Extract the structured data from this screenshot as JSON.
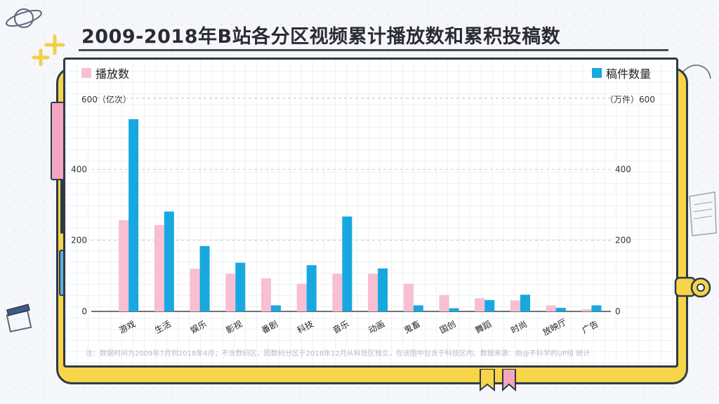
{
  "title": "2009-2018年B站各分区视频累计播放数和累积投稿数",
  "legend": {
    "left_label": "播放数",
    "right_label": "稿件数量"
  },
  "axes": {
    "left_unit": "600（亿次）",
    "right_unit": "（万件）600"
  },
  "note": "注：数据时间为2009年7月到2018年4月；不含数码区，因数码分区于2018年12月从科技区独立，在该图中包含于科技区内。数据来源：由@不科学的UP组 统计",
  "colors": {
    "play": "#f7bfd1",
    "submission": "#17a8e0"
  },
  "chart_data": {
    "type": "bar",
    "categories": [
      "游戏",
      "生活",
      "娱乐",
      "影视",
      "番剧",
      "科技",
      "音乐",
      "动画",
      "鬼畜",
      "国创",
      "舞蹈",
      "时尚",
      "放映厅",
      "广告"
    ],
    "series": [
      {
        "name": "播放数",
        "axis": "left",
        "values": [
          257,
          243,
          120,
          106,
          93,
          78,
          106,
          106,
          78,
          46,
          37,
          31,
          17,
          6
        ]
      },
      {
        "name": "稿件数量",
        "axis": "right",
        "values": [
          541,
          281,
          184,
          137,
          17,
          130,
          267,
          121,
          17,
          9,
          32,
          47,
          10,
          17
        ]
      }
    ],
    "yticks_left": [
      0,
      200,
      400
    ],
    "yticks_right": [
      0,
      200,
      400,
      600
    ],
    "ylim": [
      0,
      600
    ],
    "grid": "dashed horizontal at 600"
  }
}
